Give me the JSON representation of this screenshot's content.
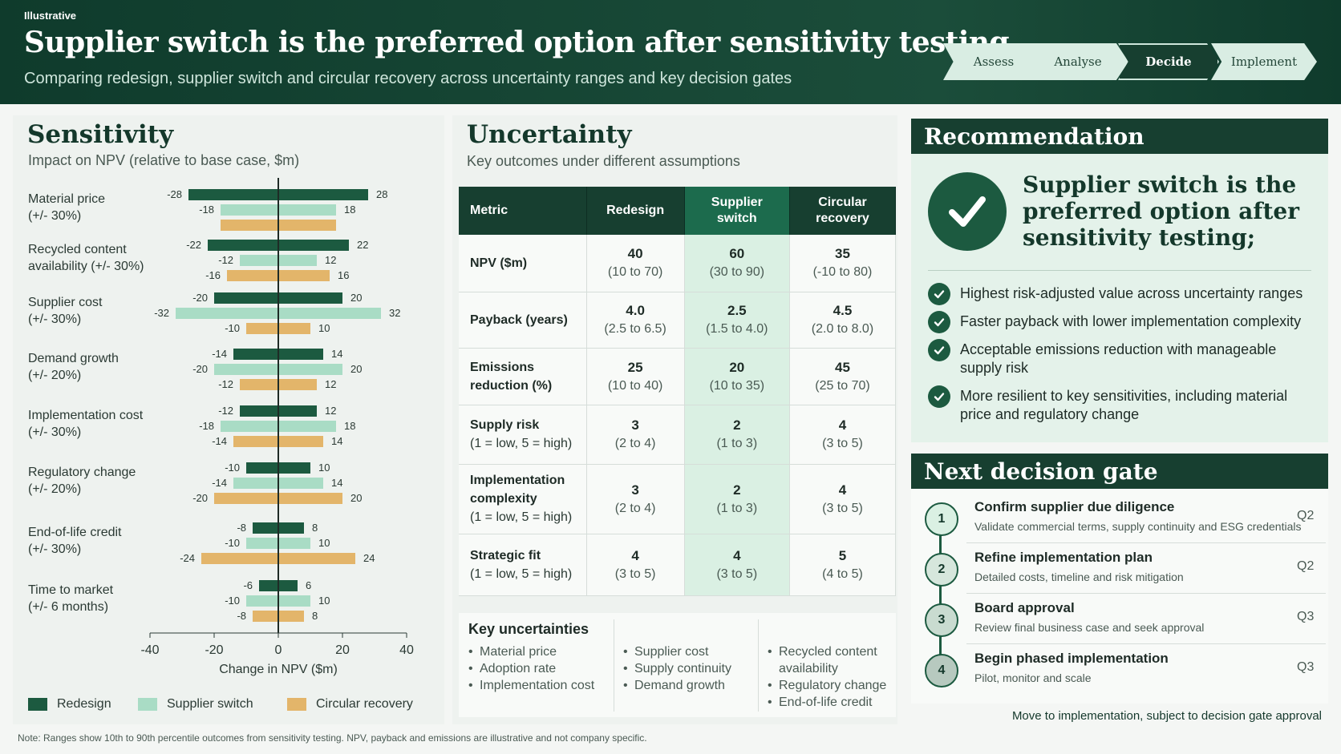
{
  "header": {
    "tag": "Illustrative",
    "title": "Supplier switch is the preferred option after sensitivity testing",
    "subtitle": "Comparing redesign, supplier switch and circular recovery across uncertainty ranges and key decision gates",
    "steps": [
      "Assess",
      "Analyse",
      "Decide",
      "Implement"
    ],
    "active_step": "Decide"
  },
  "colors": {
    "redesign": "#1c5a40",
    "supplier_switch": "#a9dcc5",
    "circular_recovery": "#e3b56a",
    "header_bg": "#173f30",
    "highlight": "#daf0e3"
  },
  "sensitivity": {
    "title": "Sensitivity",
    "subtitle": "Impact on NPV (relative to base case, $m)",
    "rows": [
      {
        "label": [
          "Material price",
          "(+/- 30%)"
        ]
      },
      {
        "label": [
          "Recycled content",
          "availability (+/- 30%)"
        ]
      },
      {
        "label": [
          "Supplier cost",
          "(+/- 30%)"
        ]
      },
      {
        "label": [
          "Demand growth",
          "(+/- 20%)"
        ]
      },
      {
        "label": [
          "Implementation cost",
          "(+/- 30%)"
        ]
      },
      {
        "label": [
          "Regulatory change",
          "(+/- 20%)"
        ]
      },
      {
        "label": [
          "End-of-life credit",
          "(+/- 30%)"
        ]
      },
      {
        "label": [
          "Time to market",
          "(+/- 6 months)"
        ]
      }
    ],
    "legend": [
      "Redesign",
      "Supplier switch",
      "Circular recovery"
    ]
  },
  "chart_data": {
    "type": "bar",
    "orientation": "horizontal tornado",
    "categories": [
      "Material price (+/- 30%)",
      "Recycled content availability (+/- 30%)",
      "Supplier cost (+/- 30%)",
      "Demand growth (+/- 20%)",
      "Implementation cost (+/- 30%)",
      "Regulatory change (+/- 20%)",
      "End-of-life credit (+/- 30%)",
      "Time to market (+/- 6 months)"
    ],
    "series": [
      {
        "name": "Redesign",
        "low": [
          -28,
          -22,
          -20,
          -14,
          -12,
          -10,
          -8,
          -6
        ],
        "high": [
          28,
          22,
          20,
          14,
          12,
          10,
          8,
          6
        ]
      },
      {
        "name": "Supplier switch",
        "low": [
          -18,
          -12,
          -32,
          -20,
          -18,
          -14,
          -10,
          -10
        ],
        "high": [
          18,
          12,
          32,
          20,
          18,
          14,
          10,
          10
        ]
      },
      {
        "name": "Circular recovery",
        "low": [
          null,
          -16,
          -10,
          -12,
          -14,
          -20,
          -24,
          -8
        ],
        "high": [
          null,
          16,
          10,
          12,
          14,
          20,
          24,
          8
        ],
        "bar_extent": [
          [
            -18,
            18
          ],
          null,
          null,
          null,
          null,
          null,
          null,
          null
        ]
      }
    ],
    "xlabel": "Change in NPV ($m)",
    "xlim": [
      -40,
      40
    ],
    "xticks": [
      -40,
      -20,
      0,
      20,
      40
    ],
    "legend_position": "bottom"
  },
  "uncertainty": {
    "title": "Uncertainty",
    "subtitle": "Key outcomes under different assumptions",
    "columns": [
      "Metric",
      "Redesign",
      "Supplier switch",
      "Circular recovery"
    ],
    "rows": [
      {
        "metric": "NPV ($m)",
        "sub": "",
        "values": [
          [
            "40",
            "(10 to 70)"
          ],
          [
            "60",
            "(30 to 90)"
          ],
          [
            "35",
            "(-10 to 80)"
          ]
        ]
      },
      {
        "metric": "Payback (years)",
        "sub": "",
        "values": [
          [
            "4.0",
            "(2.5 to 6.5)"
          ],
          [
            "2.5",
            "(1.5 to 4.0)"
          ],
          [
            "4.5",
            "(2.0 to 8.0)"
          ]
        ]
      },
      {
        "metric": "Emissions reduction (%)",
        "sub": "",
        "values": [
          [
            "25",
            "(10 to 40)"
          ],
          [
            "20",
            "(10 to 35)"
          ],
          [
            "45",
            "(25 to 70)"
          ]
        ]
      },
      {
        "metric": "Supply risk",
        "sub": "(1 = low, 5 = high)",
        "values": [
          [
            "3",
            "(2 to 4)"
          ],
          [
            "2",
            "(1 to 3)"
          ],
          [
            "4",
            "(3 to 5)"
          ]
        ]
      },
      {
        "metric": "Implementation complexity",
        "sub": "(1 = low, 5 = high)",
        "values": [
          [
            "3",
            "(2 to 4)"
          ],
          [
            "2",
            "(1 to 3)"
          ],
          [
            "4",
            "(3 to 5)"
          ]
        ]
      },
      {
        "metric": "Strategic fit",
        "sub": "(1 = low, 5 = high)",
        "values": [
          [
            "4",
            "(3 to 5)"
          ],
          [
            "4",
            "(3 to 5)"
          ],
          [
            "5",
            "(4 to 5)"
          ]
        ]
      }
    ],
    "key_uncertainties": {
      "title": "Key uncertainties",
      "col1": [
        "Material price",
        "Adoption rate",
        "Implementation cost"
      ],
      "col2": [
        "Supplier cost",
        "Supply continuity",
        "Demand growth"
      ],
      "col3": [
        "Recycled content availability",
        "Regulatory change",
        "End-of-life credit"
      ]
    }
  },
  "recommendation": {
    "title": "Recommendation",
    "headline": "Supplier switch is the preferred option after sensitivity testing;",
    "bullets": [
      "Highest risk-adjusted value across uncertainty ranges",
      "Faster payback with lower implementation complexity",
      "Acceptable emissions reduction with manageable supply risk",
      "More resilient to key sensitivities, including material price and regulatory change"
    ]
  },
  "gate": {
    "title": "Next decision gate",
    "items": [
      {
        "num": "1",
        "title": "Confirm supplier due diligence",
        "desc": "Validate commercial terms, supply continuity and ESG credentials",
        "quarter": "Q2"
      },
      {
        "num": "2",
        "title": "Refine implementation plan",
        "desc": "Detailed costs, timeline and risk mitigation",
        "quarter": "Q2"
      },
      {
        "num": "3",
        "title": "Board approval",
        "desc": "Review final business case and seek approval",
        "quarter": "Q3"
      },
      {
        "num": "4",
        "title": "Begin phased implementation",
        "desc": "Pilot, monitor and scale",
        "quarter": "Q3"
      }
    ],
    "footer": "Move to implementation, subject to decision gate approval"
  },
  "note": "Note: Ranges show 10th to 90th percentile outcomes from sensitivity testing. NPV, payback and emissions are illustrative and not company specific."
}
